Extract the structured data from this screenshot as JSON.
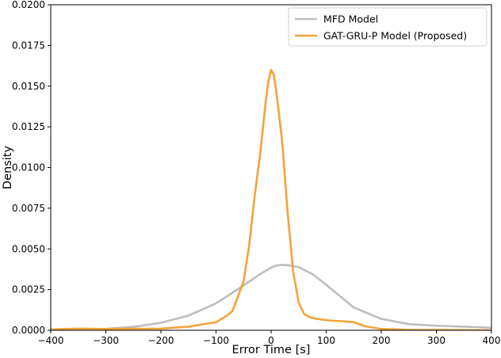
{
  "chart_data": {
    "type": "line",
    "title": "",
    "xlabel": "Error Time [s]",
    "ylabel": "Density",
    "xlim": [
      -400,
      400
    ],
    "ylim": [
      0,
      0.02
    ],
    "xticks": [
      "−400",
      "−300",
      "−200",
      "−100",
      "0",
      "100",
      "200",
      "300",
      "400"
    ],
    "yticks": [
      "0.0000",
      "0.0025",
      "0.0050",
      "0.0075",
      "0.0100",
      "0.0125",
      "0.0150",
      "0.0175",
      "0.0200"
    ],
    "grid": false,
    "legend_position": "top-right",
    "series": [
      {
        "name": "MFD Model",
        "color": "#bdbdbd",
        "x": [
          -400,
          -350,
          -300,
          -250,
          -200,
          -150,
          -100,
          -50,
          -20,
          0,
          10,
          20,
          30,
          50,
          75,
          100,
          125,
          150,
          200,
          250,
          300,
          350,
          400
        ],
        "y": [
          0.0,
          2e-05,
          9e-05,
          0.00021,
          0.00046,
          0.0009,
          0.00165,
          0.00275,
          0.00345,
          0.00385,
          0.00398,
          0.00402,
          0.004,
          0.00388,
          0.00345,
          0.0028,
          0.0021,
          0.0014,
          0.0007,
          0.00038,
          0.00028,
          0.00022,
          0.00015
        ]
      },
      {
        "name": "GAT-GRU-P Model (Proposed)",
        "color": "#f5a33a",
        "x": [
          -400,
          -350,
          -300,
          -200,
          -150,
          -100,
          -80,
          -70,
          -50,
          -40,
          -30,
          -20,
          -10,
          -5,
          0,
          5,
          10,
          20,
          30,
          40,
          50,
          60,
          70,
          80,
          100,
          150,
          170,
          200,
          250,
          300,
          350,
          400
        ],
        "y": [
          5e-05,
          0.0001,
          8e-05,
          0.0001,
          0.00022,
          0.0005,
          0.0009,
          0.0012,
          0.003,
          0.0052,
          0.0082,
          0.0108,
          0.014,
          0.0153,
          0.016,
          0.0157,
          0.0145,
          0.0116,
          0.0072,
          0.0036,
          0.0017,
          0.001,
          0.0008,
          0.00072,
          0.00062,
          0.0005,
          0.00025,
          8e-05,
          3e-05,
          2e-05,
          1e-05,
          0.0
        ]
      }
    ]
  }
}
